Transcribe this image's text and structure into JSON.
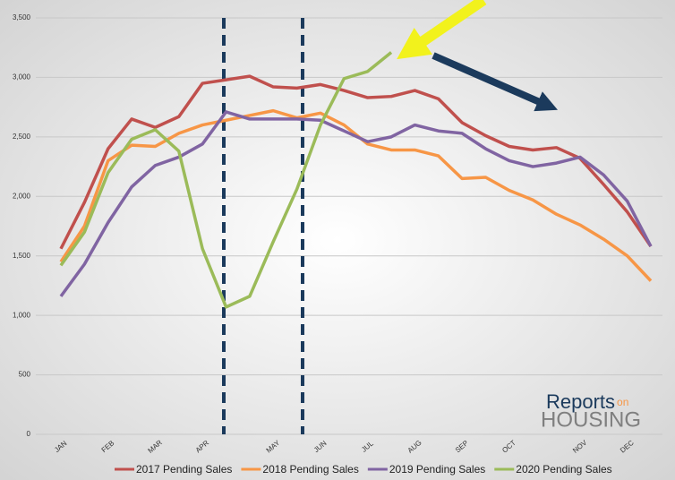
{
  "chart_data": {
    "type": "line",
    "x": [
      0,
      1,
      2,
      3,
      4,
      5,
      6,
      7,
      8,
      9,
      10,
      11,
      12,
      13,
      14,
      15,
      16,
      17,
      18,
      19,
      20,
      21,
      22,
      23,
      24,
      25
    ],
    "xlim": [
      -1,
      25.5
    ],
    "xticks": [
      {
        "value": 0,
        "label": "JAN"
      },
      {
        "value": 2,
        "label": "FEB"
      },
      {
        "value": 4,
        "label": "MAR"
      },
      {
        "value": 6,
        "label": "APR"
      },
      {
        "value": 9,
        "label": "MAY"
      },
      {
        "value": 11,
        "label": "JUN"
      },
      {
        "value": 13,
        "label": "JUL"
      },
      {
        "value": 15,
        "label": "AUG"
      },
      {
        "value": 17,
        "label": "SEP"
      },
      {
        "value": 19,
        "label": "OCT"
      },
      {
        "value": 22,
        "label": "NOV"
      },
      {
        "value": 24,
        "label": "DEC"
      }
    ],
    "ylim": [
      0,
      3500
    ],
    "yticks": [
      0,
      500,
      {
        "value": 1000,
        "label": "1,000"
      },
      {
        "value": 1500,
        "label": "1,500"
      },
      {
        "value": 2000,
        "label": "2,000"
      },
      {
        "value": 2500,
        "label": "2,500"
      },
      {
        "value": 3000,
        "label": "3,000"
      },
      {
        "value": 3500,
        "label": "3,500"
      }
    ],
    "grid": true,
    "legend": "bottom",
    "series": [
      {
        "name": "2017 Pending Sales",
        "color": "#c0504d",
        "values": [
          1560,
          1950,
          2400,
          2650,
          2580,
          2670,
          2950,
          2980,
          3010,
          2920,
          2910,
          2940,
          2890,
          2830,
          2840,
          2890,
          2820,
          2620,
          2510,
          2420,
          2390,
          2410,
          2320,
          2100,
          1870,
          1580
        ]
      },
      {
        "name": "2018 Pending Sales",
        "color": "#f79646",
        "values": [
          1450,
          1750,
          2300,
          2430,
          2420,
          2530,
          2600,
          2640,
          2680,
          2720,
          2660,
          2700,
          2600,
          2440,
          2390,
          2390,
          2340,
          2150,
          2160,
          2050,
          1970,
          1850,
          1760,
          1640,
          1500,
          1290
        ]
      },
      {
        "name": "2019 Pending Sales",
        "color": "#8064a2",
        "values": [
          1160,
          1430,
          1780,
          2080,
          2260,
          2330,
          2440,
          2710,
          2650,
          2650,
          2650,
          2640,
          2550,
          2460,
          2500,
          2600,
          2550,
          2530,
          2400,
          2300,
          2250,
          2280,
          2330,
          2180,
          1960,
          1580
        ]
      },
      {
        "name": "2020 Pending Sales",
        "color": "#9bbb59",
        "values": [
          1420,
          1700,
          2200,
          2480,
          2560,
          2380,
          1560,
          1070,
          1160,
          1620,
          2060,
          2600,
          2990,
          3050,
          3210,
          null,
          null,
          null,
          null,
          null,
          null,
          null,
          null,
          null,
          null,
          null
        ]
      }
    ]
  },
  "logo": {
    "top": "Reports",
    "small": "on",
    "bottom": "HOUSING"
  }
}
